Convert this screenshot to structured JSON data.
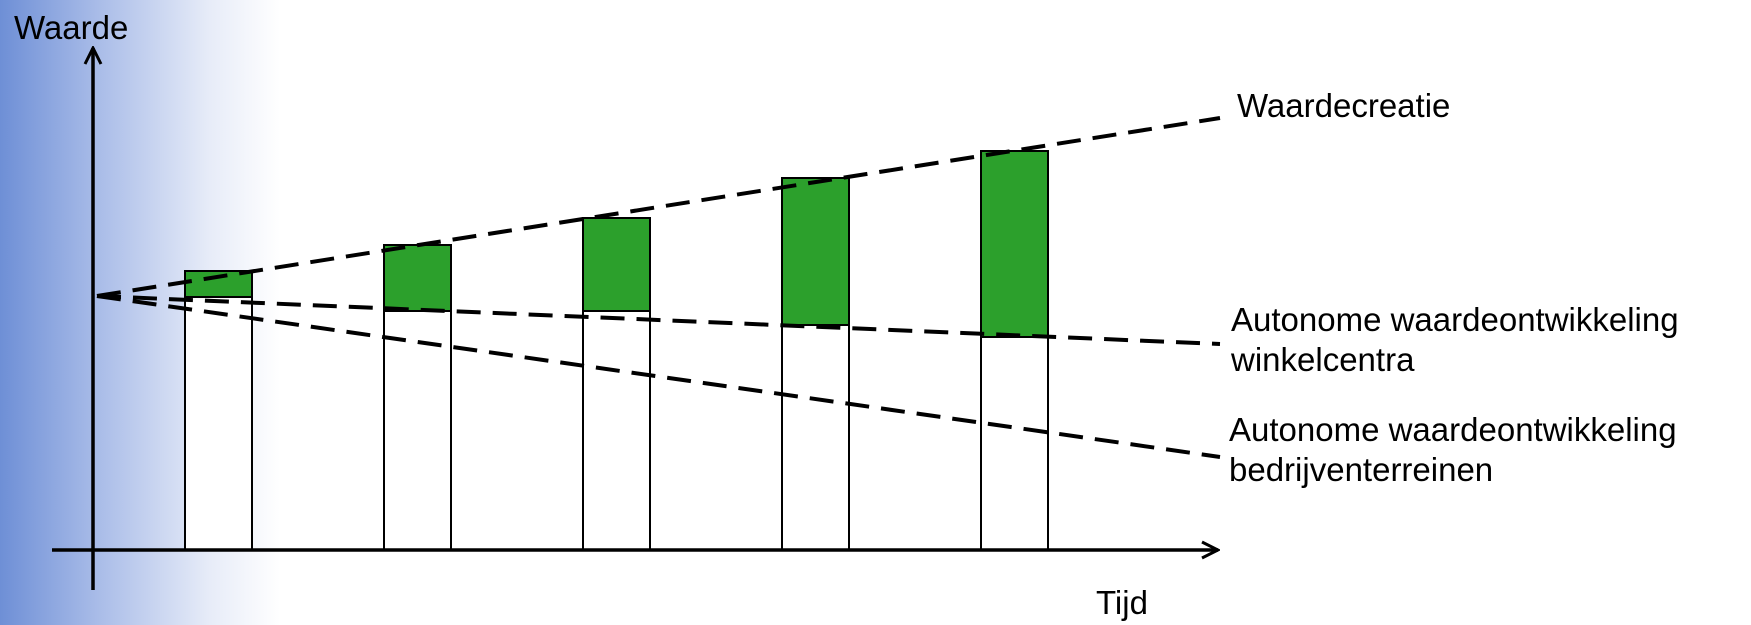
{
  "y_axis_label": "Waarde",
  "x_axis_label": "Tijd",
  "lines": [
    {
      "id": "waardecreatie",
      "label": "Waardecreatie",
      "style": "dashed"
    },
    {
      "id": "winkelcentra",
      "label_line1": "Autonome waardeontwikkeling",
      "label_line2": "winkelcentra",
      "style": "dashed"
    },
    {
      "id": "bedrijventerreinen",
      "label_line1": "Autonome waardeontwikkeling",
      "label_line2": "bedrijventerreinen",
      "style": "dashed"
    }
  ],
  "bars": {
    "count": 5,
    "base_color": "#ffffff",
    "gain_color": "#2ca02c"
  },
  "colors": {
    "axis": "#000000",
    "gain": "#2ca02c",
    "background_accent": "#6e8fd6"
  }
}
